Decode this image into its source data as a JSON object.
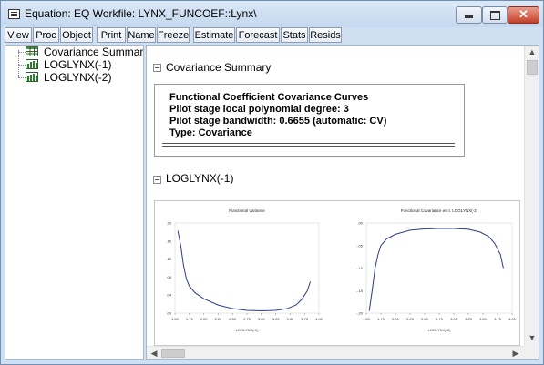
{
  "window": {
    "title": "Equation: EQ   Workfile: LYNX_FUNCOEF::Lynx\\",
    "close_symbol": "✕"
  },
  "toolbar": [
    "View",
    "Proc",
    "Object",
    "Print",
    "Name",
    "Freeze",
    "Estimate",
    "Forecast",
    "Stats",
    "Resids"
  ],
  "tree": [
    {
      "label": "Covariance Summary",
      "icon": "table-icon"
    },
    {
      "label": "LOGLYNX(-1)",
      "icon": "graph-icon"
    },
    {
      "label": "LOGLYNX(-2)",
      "icon": "graph-icon"
    }
  ],
  "sections": {
    "summary_header": "Covariance Summary",
    "summary_lines": [
      "Functional Coefficient Covariance Curves",
      "Pilot stage local polynomial degree: 3",
      "Pilot stage bandwidth: 0.6655 (automatic: CV)",
      "Type: Covariance"
    ],
    "graph_header": "LOGLYNX(-1)"
  },
  "chart_data": [
    {
      "type": "line",
      "title": "Functional Variance",
      "xlabel": "LOGLYNX(-2)",
      "x_ticks": [
        "1.50",
        "1.75",
        "2.00",
        "2.25",
        "2.50",
        "2.75",
        "3.00",
        "3.25",
        "3.50",
        "3.75",
        "4.00"
      ],
      "y_ticks": [
        ".00",
        ".04",
        ".08",
        ".12",
        ".16",
        ".20"
      ],
      "xlim": [
        1.5,
        4.0
      ],
      "ylim": [
        0.0,
        0.2
      ],
      "x": [
        1.55,
        1.6,
        1.65,
        1.7,
        1.75,
        1.85,
        2.0,
        2.25,
        2.5,
        2.75,
        3.0,
        3.25,
        3.45,
        3.6,
        3.7,
        3.8,
        3.85
      ],
      "y": [
        0.183,
        0.15,
        0.105,
        0.075,
        0.06,
        0.045,
        0.032,
        0.018,
        0.01,
        0.006,
        0.005,
        0.006,
        0.01,
        0.018,
        0.03,
        0.05,
        0.07
      ]
    },
    {
      "type": "line",
      "title": "Functional Covariance w.r.t. LOGLYNX(-2)",
      "xlabel": "LOGLYNX(-2)",
      "x_ticks": [
        "1.50",
        "1.75",
        "2.00",
        "2.25",
        "2.50",
        "2.75",
        "3.00",
        "3.25",
        "3.50",
        "3.75",
        "4.00"
      ],
      "y_ticks": [
        "-.20",
        "-.15",
        "-.10",
        "-.05",
        ".00"
      ],
      "xlim": [
        1.5,
        4.0
      ],
      "ylim": [
        -0.2,
        0.0
      ],
      "x": [
        1.55,
        1.6,
        1.65,
        1.7,
        1.75,
        1.85,
        2.0,
        2.25,
        2.5,
        2.75,
        3.0,
        3.25,
        3.45,
        3.6,
        3.7,
        3.8,
        3.85
      ],
      "y": [
        -0.195,
        -0.15,
        -0.1,
        -0.07,
        -0.05,
        -0.035,
        -0.025,
        -0.016,
        -0.013,
        -0.012,
        -0.012,
        -0.014,
        -0.02,
        -0.03,
        -0.045,
        -0.07,
        -0.1
      ]
    }
  ]
}
